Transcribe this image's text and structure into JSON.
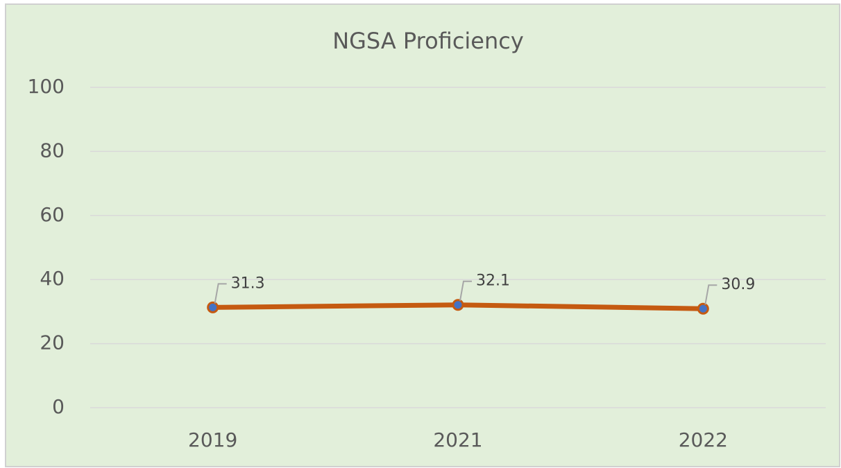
{
  "chart_data": {
    "type": "line",
    "title": "NGSA Proficiency",
    "categories": [
      "2019",
      "2021",
      "2022"
    ],
    "series": [
      {
        "name": "NGSA Proficiency",
        "color": "#c55a11",
        "values": [
          31.3,
          32.1,
          30.9
        ]
      }
    ],
    "ylim": [
      0,
      100
    ],
    "yticks": [
      0,
      20,
      40,
      60,
      80,
      100
    ],
    "grid": true
  }
}
